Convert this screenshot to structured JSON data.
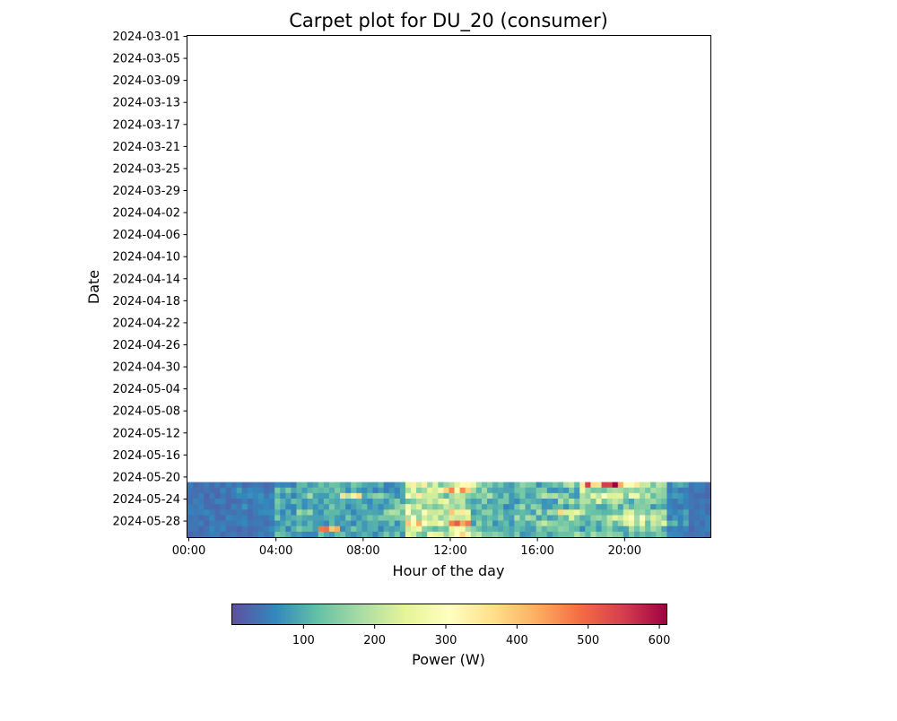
{
  "chart_data": {
    "type": "heatmap",
    "title": "Carpet plot for DU_20 (consumer)",
    "xlabel": "Hour of the day",
    "ylabel": "Date",
    "x_tick_labels": [
      "00:00",
      "04:00",
      "08:00",
      "12:00",
      "16:00",
      "20:00"
    ],
    "x_tick_hours": [
      0,
      4,
      8,
      12,
      16,
      20
    ],
    "x_range_hours": [
      0,
      24
    ],
    "y_tick_labels": [
      "2024-03-01",
      "2024-03-05",
      "2024-03-09",
      "2024-03-13",
      "2024-03-17",
      "2024-03-21",
      "2024-03-25",
      "2024-03-29",
      "2024-04-02",
      "2024-04-06",
      "2024-04-10",
      "2024-04-14",
      "2024-04-18",
      "2024-04-22",
      "2024-04-26",
      "2024-04-30",
      "2024-05-04",
      "2024-05-08",
      "2024-05-12",
      "2024-05-16",
      "2024-05-20",
      "2024-05-24",
      "2024-05-28"
    ],
    "y_range": [
      "2024-03-01",
      "2024-05-31"
    ],
    "resolution_minutes": 15,
    "dates_with_data": [
      "2024-05-21",
      "2024-05-22",
      "2024-05-23",
      "2024-05-24",
      "2024-05-25",
      "2024-05-26",
      "2024-05-27",
      "2024-05-28",
      "2024-05-29",
      "2024-05-30"
    ],
    "hourly_power_w": [
      [
        40,
        40,
        45,
        40,
        60,
        90,
        120,
        100,
        90,
        80,
        330,
        210,
        300,
        200,
        110,
        130,
        100,
        150,
        450,
        560,
        250,
        170,
        80,
        40
      ],
      [
        40,
        45,
        60,
        40,
        110,
        90,
        110,
        100,
        80,
        70,
        200,
        300,
        350,
        140,
        90,
        120,
        110,
        100,
        200,
        180,
        160,
        150,
        70,
        40
      ],
      [
        40,
        40,
        50,
        60,
        80,
        130,
        100,
        270,
        120,
        90,
        250,
        180,
        200,
        140,
        130,
        110,
        150,
        120,
        180,
        220,
        200,
        160,
        60,
        40
      ],
      [
        40,
        45,
        40,
        60,
        100,
        110,
        90,
        90,
        80,
        110,
        180,
        220,
        160,
        130,
        110,
        100,
        100,
        150,
        190,
        160,
        140,
        170,
        60,
        40
      ],
      [
        40,
        40,
        55,
        50,
        90,
        100,
        120,
        90,
        90,
        120,
        200,
        170,
        180,
        110,
        90,
        130,
        110,
        90,
        120,
        130,
        150,
        120,
        50,
        40
      ],
      [
        45,
        40,
        40,
        60,
        80,
        130,
        100,
        100,
        80,
        140,
        250,
        200,
        320,
        120,
        100,
        110,
        140,
        280,
        160,
        140,
        230,
        180,
        70,
        45
      ],
      [
        40,
        45,
        50,
        60,
        110,
        120,
        110,
        100,
        100,
        130,
        220,
        180,
        260,
        140,
        110,
        150,
        130,
        180,
        150,
        200,
        260,
        170,
        60,
        40
      ],
      [
        40,
        40,
        45,
        50,
        90,
        100,
        90,
        80,
        80,
        100,
        320,
        230,
        380,
        120,
        100,
        100,
        160,
        160,
        120,
        150,
        210,
        190,
        90,
        40
      ],
      [
        40,
        45,
        40,
        50,
        80,
        120,
        400,
        100,
        80,
        110,
        200,
        170,
        230,
        130,
        90,
        100,
        110,
        120,
        100,
        110,
        140,
        130,
        60,
        40
      ],
      [
        40,
        40,
        40,
        60,
        100,
        90,
        120,
        90,
        90,
        100,
        180,
        200,
        310,
        150,
        120,
        110,
        100,
        140,
        140,
        120,
        120,
        110,
        50,
        40
      ]
    ],
    "colorbar": {
      "label": "Power (W)",
      "colormap": "Spectral_r",
      "min": 0,
      "max": 610,
      "ticks": [
        100,
        200,
        300,
        400,
        500,
        600
      ],
      "tick_labels": [
        "100",
        "200",
        "300",
        "400",
        "500",
        "600"
      ]
    },
    "colormap_stops": [
      "#5e4fa2",
      "#3288bd",
      "#66c2a5",
      "#abdda4",
      "#e6f598",
      "#ffffbf",
      "#fee08b",
      "#fdae61",
      "#f46d43",
      "#d53e4f",
      "#9e0142"
    ],
    "grid": false
  }
}
